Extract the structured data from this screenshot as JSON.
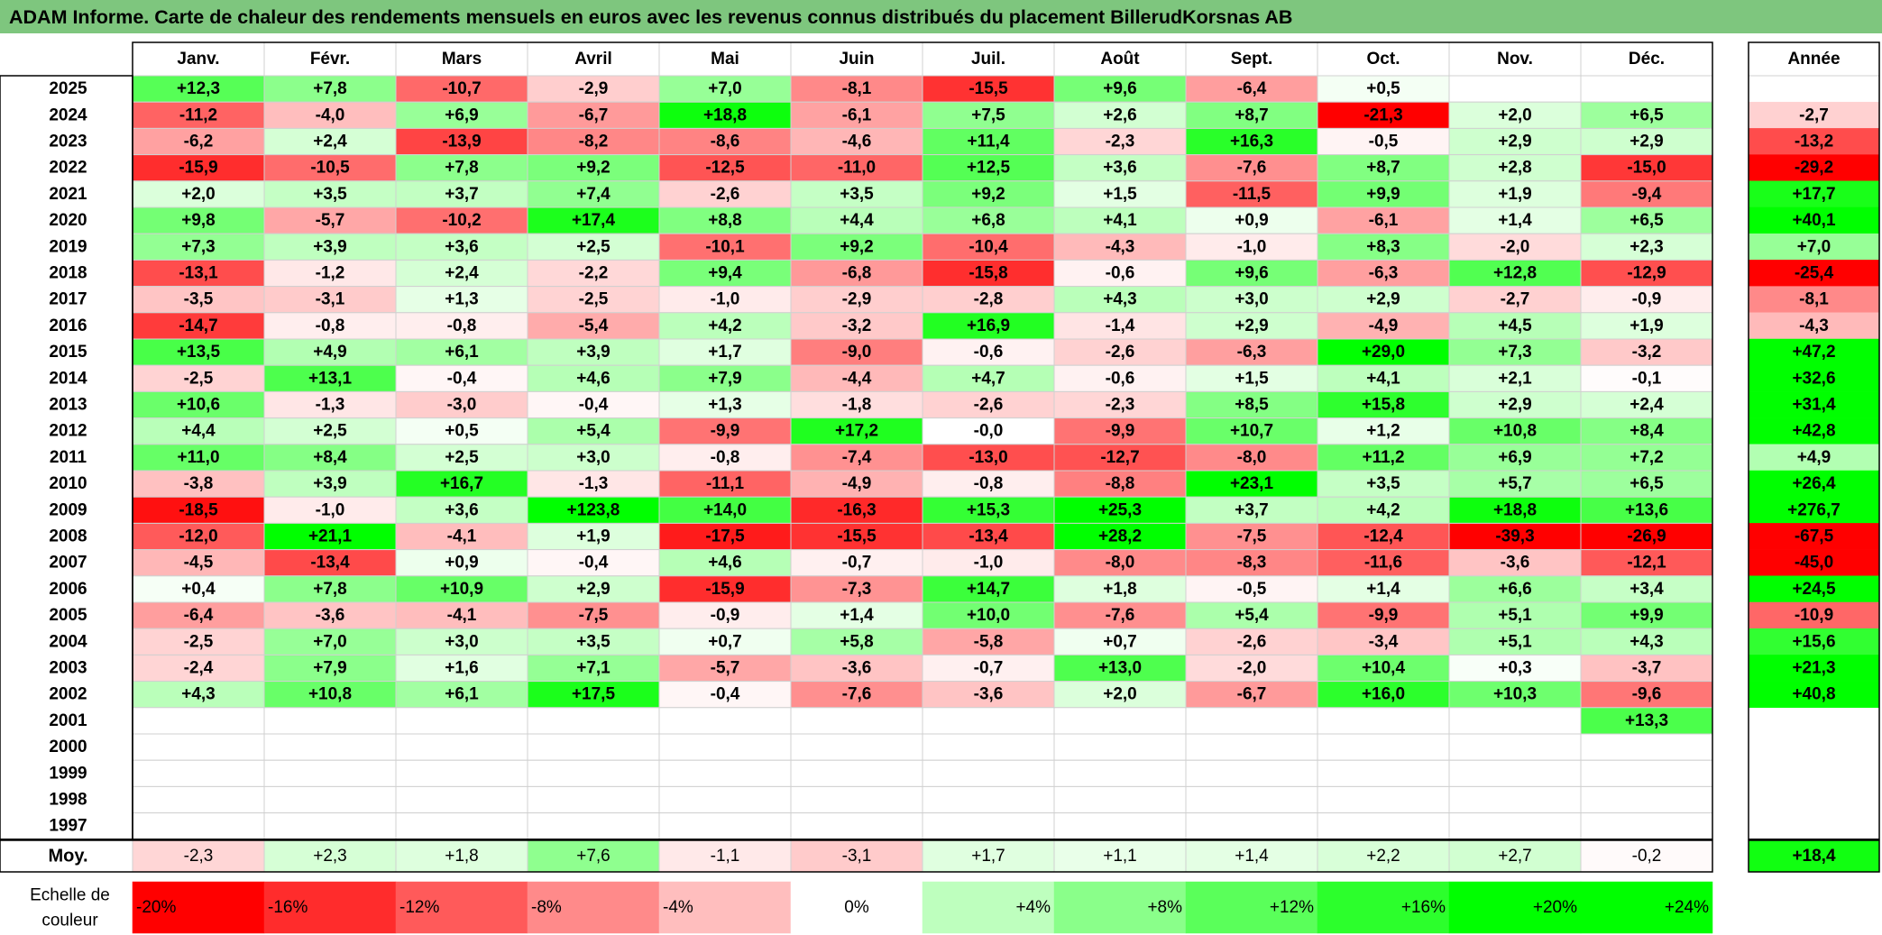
{
  "title": "ADAM Informe. Carte de chaleur des rendements mensuels en euros avec les revenus connus distribués du placement BillerudKorsnas AB",
  "chart_data": {
    "type": "heatmap",
    "title": "ADAM Informe. Carte de chaleur des rendements mensuels en euros avec les revenus connus distribués du placement BillerudKorsnas AB",
    "months": [
      "Janv.",
      "Févr.",
      "Mars",
      "Avril",
      "Mai",
      "Juin",
      "Juil.",
      "Août",
      "Sept.",
      "Oct.",
      "Nov.",
      "Déc."
    ],
    "annual_header": "Année",
    "years": [
      "2025",
      "2024",
      "2023",
      "2022",
      "2021",
      "2020",
      "2019",
      "2018",
      "2017",
      "2016",
      "2015",
      "2014",
      "2013",
      "2012",
      "2011",
      "2010",
      "2009",
      "2008",
      "2007",
      "2006",
      "2005",
      "2004",
      "2003",
      "2002",
      "2001",
      "2000",
      "1999",
      "1998",
      "1997"
    ],
    "values": [
      [
        "+12,3",
        "+7,8",
        "-10,7",
        "-2,9",
        "+7,0",
        "-8,1",
        "-15,5",
        "+9,6",
        "-6,4",
        "+0,5",
        "",
        ""
      ],
      [
        "-11,2",
        "-4,0",
        "+6,9",
        "-6,7",
        "+18,8",
        "-6,1",
        "+7,5",
        "+2,6",
        "+8,7",
        "-21,3",
        "+2,0",
        "+6,5"
      ],
      [
        "-6,2",
        "+2,4",
        "-13,9",
        "-8,2",
        "-8,6",
        "-4,6",
        "+11,4",
        "-2,3",
        "+16,3",
        "-0,5",
        "+2,9",
        "+2,9"
      ],
      [
        "-15,9",
        "-10,5",
        "+7,8",
        "+9,2",
        "-12,5",
        "-11,0",
        "+12,5",
        "+3,6",
        "-7,6",
        "+8,7",
        "+2,8",
        "-15,0"
      ],
      [
        "+2,0",
        "+3,5",
        "+3,7",
        "+7,4",
        "-2,6",
        "+3,5",
        "+9,2",
        "+1,5",
        "-11,5",
        "+9,9",
        "+1,9",
        "-9,4"
      ],
      [
        "+9,8",
        "-5,7",
        "-10,2",
        "+17,4",
        "+8,8",
        "+4,4",
        "+6,8",
        "+4,1",
        "+0,9",
        "-6,1",
        "+1,4",
        "+6,5"
      ],
      [
        "+7,3",
        "+3,9",
        "+3,6",
        "+2,5",
        "-10,1",
        "+9,2",
        "-10,4",
        "-4,3",
        "-1,0",
        "+8,3",
        "-2,0",
        "+2,3"
      ],
      [
        "-13,1",
        "-1,2",
        "+2,4",
        "-2,2",
        "+9,4",
        "-6,8",
        "-15,8",
        "-0,6",
        "+9,6",
        "-6,3",
        "+12,8",
        "-12,9"
      ],
      [
        "-3,5",
        "-3,1",
        "+1,3",
        "-2,5",
        "-1,0",
        "-2,9",
        "-2,8",
        "+4,3",
        "+3,0",
        "+2,9",
        "-2,7",
        "-0,9"
      ],
      [
        "-14,7",
        "-0,8",
        "-0,8",
        "-5,4",
        "+4,2",
        "-3,2",
        "+16,9",
        "-1,4",
        "+2,9",
        "-4,9",
        "+4,5",
        "+1,9"
      ],
      [
        "+13,5",
        "+4,9",
        "+6,1",
        "+3,9",
        "+1,7",
        "-9,0",
        "-0,6",
        "-2,6",
        "-6,3",
        "+29,0",
        "+7,3",
        "-3,2"
      ],
      [
        "-2,5",
        "+13,1",
        "-0,4",
        "+4,6",
        "+7,9",
        "-4,4",
        "+4,7",
        "-0,6",
        "+1,5",
        "+4,1",
        "+2,1",
        "-0,1"
      ],
      [
        "+10,6",
        "-1,3",
        "-3,0",
        "-0,4",
        "+1,3",
        "-1,8",
        "-2,6",
        "-2,3",
        "+8,5",
        "+15,8",
        "+2,9",
        "+2,4"
      ],
      [
        "+4,4",
        "+2,5",
        "+0,5",
        "+5,4",
        "-9,9",
        "+17,2",
        "-0,0",
        "-9,9",
        "+10,7",
        "+1,2",
        "+10,8",
        "+8,4"
      ],
      [
        "+11,0",
        "+8,4",
        "+2,5",
        "+3,0",
        "-0,8",
        "-7,4",
        "-13,0",
        "-12,7",
        "-8,0",
        "+11,2",
        "+6,9",
        "+7,2"
      ],
      [
        "-3,8",
        "+3,9",
        "+16,7",
        "-1,3",
        "-11,1",
        "-4,9",
        "-0,8",
        "-8,8",
        "+23,1",
        "+3,5",
        "+5,7",
        "+6,5"
      ],
      [
        "-18,5",
        "-1,0",
        "+3,6",
        "+123,8",
        "+14,0",
        "-16,3",
        "+15,3",
        "+25,3",
        "+3,7",
        "+4,2",
        "+18,8",
        "+13,6"
      ],
      [
        "-12,0",
        "+21,1",
        "-4,1",
        "+1,9",
        "-17,5",
        "-15,5",
        "-13,4",
        "+28,2",
        "-7,5",
        "-12,4",
        "-39,3",
        "-26,9"
      ],
      [
        "-4,5",
        "-13,4",
        "+0,9",
        "-0,4",
        "+4,6",
        "-0,7",
        "-1,0",
        "-8,0",
        "-8,3",
        "-11,6",
        "-3,6",
        "-12,1"
      ],
      [
        "+0,4",
        "+7,8",
        "+10,9",
        "+2,9",
        "-15,9",
        "-7,3",
        "+14,7",
        "+1,8",
        "-0,5",
        "+1,4",
        "+6,6",
        "+3,4"
      ],
      [
        "-6,4",
        "-3,6",
        "-4,1",
        "-7,5",
        "-0,9",
        "+1,4",
        "+10,0",
        "-7,6",
        "+5,4",
        "-9,9",
        "+5,1",
        "+9,9"
      ],
      [
        "-2,5",
        "+7,0",
        "+3,0",
        "+3,5",
        "+0,7",
        "+5,8",
        "-5,8",
        "+0,7",
        "-2,6",
        "-3,4",
        "+5,1",
        "+4,3"
      ],
      [
        "-2,4",
        "+7,9",
        "+1,6",
        "+7,1",
        "-5,7",
        "-3,6",
        "-0,7",
        "+13,0",
        "-2,0",
        "+10,4",
        "+0,3",
        "-3,7"
      ],
      [
        "+4,3",
        "+10,8",
        "+6,1",
        "+17,5",
        "-0,4",
        "-7,6",
        "-3,6",
        "+2,0",
        "-6,7",
        "+16,0",
        "+10,3",
        "-9,6"
      ],
      [
        "",
        "",
        "",
        "",
        "",
        "",
        "",
        "",
        "",
        "",
        "",
        "+13,3"
      ],
      [
        "",
        "",
        "",
        "",
        "",
        "",
        "",
        "",
        "",
        "",
        "",
        ""
      ],
      [
        "",
        "",
        "",
        "",
        "",
        "",
        "",
        "",
        "",
        "",
        "",
        ""
      ],
      [
        "",
        "",
        "",
        "",
        "",
        "",
        "",
        "",
        "",
        "",
        "",
        ""
      ],
      [
        "",
        "",
        "",
        "",
        "",
        "",
        "",
        "",
        "",
        "",
        "",
        ""
      ]
    ],
    "annual": [
      "",
      "-2,7",
      "-13,2",
      "-29,2",
      "+17,7",
      "+40,1",
      "+7,0",
      "-25,4",
      "-8,1",
      "-4,3",
      "+47,2",
      "+32,6",
      "+31,4",
      "+42,8",
      "+4,9",
      "+26,4",
      "+276,7",
      "-67,5",
      "-45,0",
      "+24,5",
      "-10,9",
      "+15,6",
      "+21,3",
      "+40,8",
      "",
      "",
      "",
      "",
      ""
    ],
    "average_label": "Moy.",
    "average": [
      "-2,3",
      "+2,3",
      "+1,8",
      "+7,6",
      "-1,1",
      "-3,1",
      "+1,7",
      "+1,1",
      "+1,4",
      "+2,2",
      "+2,7",
      "-0,2"
    ],
    "average_annual": "+18,4",
    "scale_label": [
      "Echelle de",
      "couleur"
    ],
    "scale": [
      {
        "label": "-20%",
        "value": -20
      },
      {
        "label": "-16%",
        "value": -16
      },
      {
        "label": "-12%",
        "value": -12
      },
      {
        "label": "-8%",
        "value": -8
      },
      {
        "label": "-4%",
        "value": -4
      },
      {
        "label": "0%",
        "value": 0
      },
      {
        "label": "+4%",
        "value": 4
      },
      {
        "label": "+8%",
        "value": 8
      },
      {
        "label": "+12%",
        "value": 12
      },
      {
        "label": "+16%",
        "value": 16
      },
      {
        "label": "+20%",
        "value": 20
      },
      {
        "label": "+24%",
        "value": 24
      }
    ],
    "colors": {
      "title_band": "#7ec67e",
      "strong_negative": "#ff0000",
      "neutral": "#ffffff",
      "strong_positive": "#00ff00",
      "grid": "#d0d0d0",
      "border": "#000000"
    }
  }
}
